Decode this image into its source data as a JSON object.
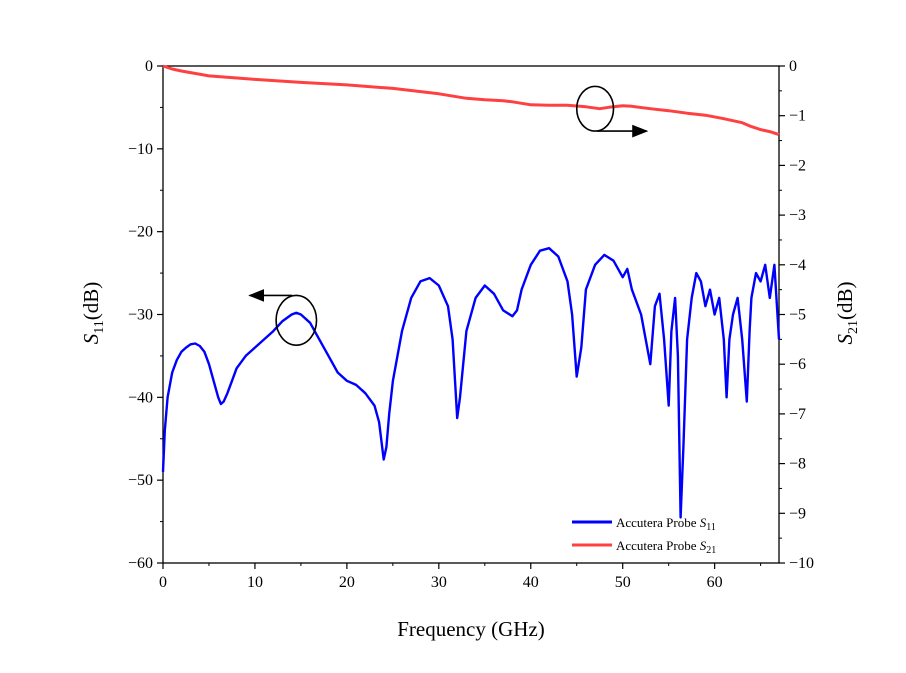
{
  "chart_data": {
    "type": "line",
    "xlabel": "Frequency (GHz)",
    "ylabel_left": {
      "main": "S",
      "sub": "11",
      "suffix": "(dB)"
    },
    "ylabel_right": {
      "main": "S",
      "sub": "21",
      "suffix": "(dB)"
    },
    "xlim": [
      0,
      67
    ],
    "ylim_left": [
      -60,
      0
    ],
    "ylim_right": [
      -10,
      0
    ],
    "x_ticks": [
      0,
      10,
      20,
      30,
      40,
      50,
      60
    ],
    "y_left_ticks": [
      0,
      -10,
      -20,
      -30,
      -40,
      -50,
      -60
    ],
    "y_right_ticks": [
      0,
      -1,
      -2,
      -3,
      -4,
      -5,
      -6,
      -7,
      -8,
      -9,
      -10
    ],
    "legend_position": "bottom-right",
    "grid": false,
    "series": [
      {
        "name": "Accutera Probe S11",
        "legend": {
          "main": "Accutera Probe ",
          "italic": "S",
          "sub": "11"
        },
        "axis": "left",
        "color": "#0000ff",
        "points": [
          [
            0,
            -49
          ],
          [
            0.2,
            -44
          ],
          [
            0.5,
            -40
          ],
          [
            1,
            -37
          ],
          [
            1.5,
            -35.5
          ],
          [
            2,
            -34.5
          ],
          [
            2.5,
            -34
          ],
          [
            3,
            -33.6
          ],
          [
            3.5,
            -33.5
          ],
          [
            4,
            -33.8
          ],
          [
            4.5,
            -34.5
          ],
          [
            5,
            -36
          ],
          [
            5.5,
            -38
          ],
          [
            6,
            -40
          ],
          [
            6.3,
            -40.8
          ],
          [
            6.6,
            -40.5
          ],
          [
            7,
            -39.5
          ],
          [
            7.5,
            -38
          ],
          [
            8,
            -36.5
          ],
          [
            9,
            -35
          ],
          [
            10,
            -34
          ],
          [
            11,
            -33
          ],
          [
            12,
            -32
          ],
          [
            13,
            -30.8
          ],
          [
            14,
            -30
          ],
          [
            14.5,
            -29.8
          ],
          [
            15,
            -30
          ],
          [
            16,
            -31
          ],
          [
            17,
            -33
          ],
          [
            18,
            -35
          ],
          [
            19,
            -37
          ],
          [
            20,
            -38
          ],
          [
            21,
            -38.5
          ],
          [
            22,
            -39.5
          ],
          [
            23,
            -41
          ],
          [
            23.5,
            -43
          ],
          [
            24,
            -47.5
          ],
          [
            24.3,
            -46
          ],
          [
            24.6,
            -42
          ],
          [
            25,
            -38
          ],
          [
            26,
            -32
          ],
          [
            27,
            -28
          ],
          [
            28,
            -26
          ],
          [
            29,
            -25.6
          ],
          [
            30,
            -26.5
          ],
          [
            31,
            -29
          ],
          [
            31.5,
            -33
          ],
          [
            32,
            -42.5
          ],
          [
            32.3,
            -40
          ],
          [
            33,
            -32
          ],
          [
            34,
            -28
          ],
          [
            35,
            -26.5
          ],
          [
            36,
            -27.5
          ],
          [
            37,
            -29.5
          ],
          [
            38,
            -30.2
          ],
          [
            38.5,
            -29.5
          ],
          [
            39,
            -27
          ],
          [
            40,
            -24
          ],
          [
            41,
            -22.3
          ],
          [
            42,
            -22
          ],
          [
            43,
            -23
          ],
          [
            44,
            -26
          ],
          [
            44.5,
            -30
          ],
          [
            45,
            -37.5
          ],
          [
            45.5,
            -34
          ],
          [
            46,
            -27
          ],
          [
            47,
            -24
          ],
          [
            48,
            -22.8
          ],
          [
            49,
            -23.5
          ],
          [
            50,
            -25.5
          ],
          [
            50.5,
            -24.5
          ],
          [
            51,
            -27
          ],
          [
            52,
            -30
          ],
          [
            52.5,
            -33
          ],
          [
            53,
            -36
          ],
          [
            53.5,
            -29
          ],
          [
            54,
            -27.5
          ],
          [
            54.5,
            -33
          ],
          [
            55,
            -41
          ],
          [
            55.3,
            -32
          ],
          [
            55.7,
            -28
          ],
          [
            56,
            -35
          ],
          [
            56.3,
            -54.5
          ],
          [
            56.6,
            -46
          ],
          [
            57,
            -33
          ],
          [
            57.5,
            -28
          ],
          [
            58,
            -25
          ],
          [
            58.5,
            -26
          ],
          [
            59,
            -29
          ],
          [
            59.5,
            -27
          ],
          [
            60,
            -30
          ],
          [
            60.5,
            -28
          ],
          [
            61,
            -33
          ],
          [
            61.3,
            -40
          ],
          [
            61.6,
            -33
          ],
          [
            62,
            -30
          ],
          [
            62.5,
            -28
          ],
          [
            63,
            -33
          ],
          [
            63.5,
            -40.5
          ],
          [
            63.8,
            -32
          ],
          [
            64,
            -28
          ],
          [
            64.5,
            -25
          ],
          [
            65,
            -26
          ],
          [
            65.5,
            -24
          ],
          [
            66,
            -28
          ],
          [
            66.5,
            -24
          ],
          [
            67,
            -33
          ]
        ]
      },
      {
        "name": "Accutera Probe S21",
        "legend": {
          "main": "Accutera Probe ",
          "italic": "S",
          "sub": "21"
        },
        "axis": "right",
        "color": "#ff4040",
        "points": [
          [
            0,
            0
          ],
          [
            1,
            -0.06
          ],
          [
            2,
            -0.1
          ],
          [
            5,
            -0.2
          ],
          [
            10,
            -0.27
          ],
          [
            15,
            -0.33
          ],
          [
            20,
            -0.38
          ],
          [
            25,
            -0.45
          ],
          [
            30,
            -0.56
          ],
          [
            33,
            -0.65
          ],
          [
            35,
            -0.68
          ],
          [
            37,
            -0.7
          ],
          [
            38,
            -0.72
          ],
          [
            40,
            -0.78
          ],
          [
            42,
            -0.79
          ],
          [
            44,
            -0.79
          ],
          [
            46,
            -0.82
          ],
          [
            47.5,
            -0.86
          ],
          [
            48.5,
            -0.83
          ],
          [
            50,
            -0.8
          ],
          [
            51,
            -0.81
          ],
          [
            53,
            -0.86
          ],
          [
            55,
            -0.9
          ],
          [
            57,
            -0.95
          ],
          [
            59,
            -0.99
          ],
          [
            61,
            -1.06
          ],
          [
            63,
            -1.14
          ],
          [
            64,
            -1.22
          ],
          [
            65,
            -1.28
          ],
          [
            66,
            -1.32
          ],
          [
            67,
            -1.38
          ]
        ]
      }
    ],
    "annotations": [
      {
        "type": "ellipse",
        "cx": 14.5,
        "cy": -30.7,
        "axis": "left",
        "rx_data": 2.2,
        "ry_data": 3.0,
        "arrow_to": "left"
      },
      {
        "type": "ellipse",
        "cx": 47.0,
        "cy": -0.86,
        "axis": "right",
        "rx_data": 2.0,
        "ry_data": 0.45,
        "arrow_to": "right"
      }
    ]
  }
}
